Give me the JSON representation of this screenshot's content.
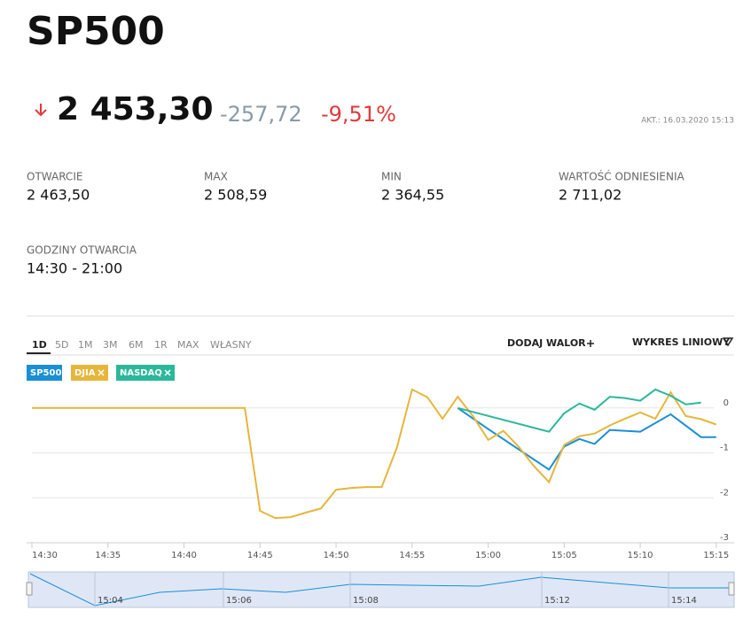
{
  "header": {
    "title": "SP500"
  },
  "quote": {
    "price": "2 453,30",
    "change": "-257,72",
    "change_pct": "-9,51%",
    "updated": "AKT.: 16.03.2020 15:13"
  },
  "stats": [
    {
      "label": "OTWARCIE",
      "value": "2 463,50"
    },
    {
      "label": "MAX",
      "value": "2 508,59"
    },
    {
      "label": "MIN",
      "value": "2 364,55"
    },
    {
      "label": "WARTOŚĆ ODNIESIENIA",
      "value": "2 711,02"
    },
    {
      "label": "GODZINY OTWARCIA",
      "value": "14:30 - 21:00"
    }
  ],
  "tabs": [
    "1D",
    "5D",
    "1M",
    "3M",
    "6M",
    "1R",
    "MAX",
    "WŁASNY"
  ],
  "actions": {
    "add": "DODAJ WALOR",
    "chart_type": "WYKRES LINIOWY"
  },
  "chart_data": {
    "type": "line",
    "xlim": [
      "14:30",
      "15:16"
    ],
    "xticks": [
      "14:30",
      "14:35",
      "14:40",
      "14:45",
      "14:50",
      "14:55",
      "15:00",
      "15:05",
      "15:10",
      "15:15"
    ],
    "ylim": [
      -3,
      1
    ],
    "yticks": [
      0,
      -1,
      -2,
      -3
    ],
    "grid": true,
    "series": [
      {
        "name": "SP500",
        "color": "#1a8fd6",
        "x": [
          "14:58",
          "15:00",
          "15:04",
          "15:05",
          "15:06",
          "15:07",
          "15:08",
          "15:10",
          "15:12",
          "15:14",
          "15:15"
        ],
        "values": [
          0,
          -0.47,
          -1.37,
          -0.86,
          -0.69,
          -0.8,
          -0.49,
          -0.53,
          -0.14,
          -0.65,
          -0.65
        ]
      },
      {
        "name": "DJIA",
        "color": "#e6b63b",
        "x": [
          "14:30",
          "14:44",
          "14:45",
          "14:46",
          "14:47",
          "14:48",
          "14:49",
          "14:50",
          "14:51",
          "14:52",
          "14:53",
          "14:54",
          "14:55",
          "14:56",
          "14:57",
          "14:58",
          "14:59",
          "15:00",
          "15:01",
          "15:02",
          "15:03",
          "15:04",
          "15:05",
          "15:06",
          "15:07",
          "15:08",
          "15:09",
          "15:10",
          "15:11",
          "15:12",
          "15:13",
          "15:14",
          "15:15"
        ],
        "values": [
          0,
          0,
          -2.29,
          -2.45,
          -2.43,
          -2.33,
          -2.24,
          -1.82,
          -1.78,
          -1.76,
          -1.76,
          -0.88,
          0.41,
          0.24,
          -0.24,
          0.25,
          -0.18,
          -0.71,
          -0.51,
          -0.86,
          -1.29,
          -1.65,
          -0.82,
          -0.63,
          -0.57,
          -0.39,
          -0.24,
          -0.1,
          -0.24,
          0.35,
          -0.18,
          -0.25,
          -0.37
        ]
      },
      {
        "name": "NASDAQ",
        "color": "#2bb89a",
        "x": [
          "14:58",
          "15:04",
          "15:05",
          "15:06",
          "15:07",
          "15:08",
          "15:09",
          "15:10",
          "15:11",
          "15:12",
          "15:13",
          "15:14"
        ],
        "values": [
          0,
          -0.53,
          -0.12,
          0.1,
          -0.04,
          0.25,
          0.22,
          0.16,
          0.41,
          0.27,
          0.08,
          0.12
        ]
      }
    ]
  },
  "navigator": {
    "labels": [
      "15:04",
      "15:06",
      "15:08",
      "15:12",
      "15:14"
    ]
  }
}
